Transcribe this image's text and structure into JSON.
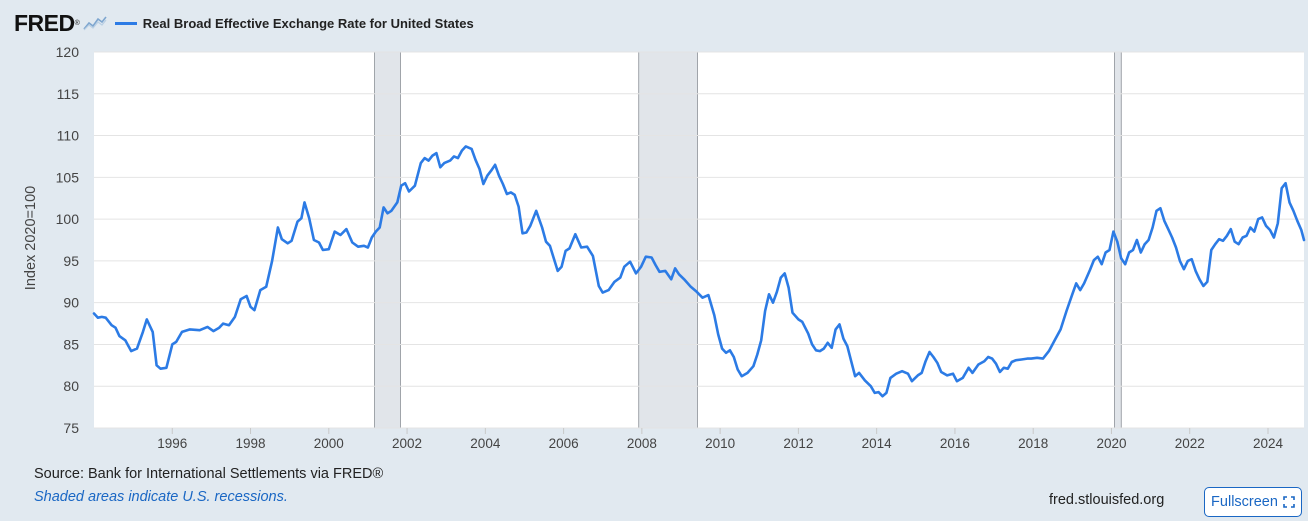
{
  "header": {
    "logo_text": "FRED",
    "logo_reg": "®",
    "legend_label": "Real Broad Effective Exchange Rate for United States",
    "series_color": "#2c7be5"
  },
  "footer": {
    "source": "Source: Bank for International Settlements via FRED®",
    "note": "Shaded areas indicate U.S. recessions.",
    "site": "fred.stlouisfed.org",
    "fullscreen_label": "Fullscreen"
  },
  "chart_data": {
    "type": "line",
    "title": "",
    "ylabel": "Index 2020=100",
    "xlabel": "",
    "xlim": [
      1994.0,
      2024.92
    ],
    "ylim": [
      75,
      120
    ],
    "yticks": [
      75,
      80,
      85,
      90,
      95,
      100,
      105,
      110,
      115,
      120
    ],
    "xticks": [
      1996,
      1998,
      2000,
      2002,
      2004,
      2006,
      2008,
      2010,
      2012,
      2014,
      2016,
      2018,
      2020,
      2022,
      2024
    ],
    "grid": "horizontal",
    "recessions": [
      [
        2001.17,
        2001.83
      ],
      [
        2007.92,
        2009.42
      ],
      [
        2020.08,
        2020.25
      ]
    ],
    "series": [
      {
        "name": "Real Broad Effective Exchange Rate for United States",
        "color": "#2c7be5",
        "points": [
          [
            1994.0,
            88.7
          ],
          [
            1994.1,
            88.2
          ],
          [
            1994.2,
            88.3
          ],
          [
            1994.3,
            88.2
          ],
          [
            1994.45,
            87.3
          ],
          [
            1994.55,
            87.0
          ],
          [
            1994.65,
            86.0
          ],
          [
            1994.8,
            85.5
          ],
          [
            1994.95,
            84.2
          ],
          [
            1995.1,
            84.5
          ],
          [
            1995.25,
            86.5
          ],
          [
            1995.35,
            88.0
          ],
          [
            1995.5,
            86.5
          ],
          [
            1995.6,
            82.5
          ],
          [
            1995.7,
            82.1
          ],
          [
            1995.85,
            82.2
          ],
          [
            1996.0,
            85.0
          ],
          [
            1996.1,
            85.3
          ],
          [
            1996.25,
            86.5
          ],
          [
            1996.45,
            86.8
          ],
          [
            1996.7,
            86.7
          ],
          [
            1996.9,
            87.1
          ],
          [
            1997.05,
            86.6
          ],
          [
            1997.2,
            87.0
          ],
          [
            1997.3,
            87.5
          ],
          [
            1997.45,
            87.3
          ],
          [
            1997.6,
            88.3
          ],
          [
            1997.75,
            90.4
          ],
          [
            1997.9,
            90.8
          ],
          [
            1998.0,
            89.5
          ],
          [
            1998.1,
            89.1
          ],
          [
            1998.25,
            91.5
          ],
          [
            1998.4,
            91.9
          ],
          [
            1998.55,
            95.0
          ],
          [
            1998.7,
            99.0
          ],
          [
            1998.8,
            97.6
          ],
          [
            1998.95,
            97.1
          ],
          [
            1999.05,
            97.4
          ],
          [
            1999.2,
            99.7
          ],
          [
            1999.3,
            100.1
          ],
          [
            1999.38,
            102.0
          ],
          [
            1999.5,
            100.1
          ],
          [
            1999.62,
            97.5
          ],
          [
            1999.75,
            97.2
          ],
          [
            1999.85,
            96.3
          ],
          [
            2000.0,
            96.4
          ],
          [
            2000.15,
            98.5
          ],
          [
            2000.3,
            98.1
          ],
          [
            2000.45,
            98.8
          ],
          [
            2000.6,
            97.2
          ],
          [
            2000.75,
            96.7
          ],
          [
            2000.9,
            96.8
          ],
          [
            2001.0,
            96.6
          ],
          [
            2001.1,
            97.8
          ],
          [
            2001.2,
            98.5
          ],
          [
            2001.3,
            99.0
          ],
          [
            2001.4,
            101.4
          ],
          [
            2001.5,
            100.7
          ],
          [
            2001.6,
            101.0
          ],
          [
            2001.75,
            102.0
          ],
          [
            2001.85,
            104.0
          ],
          [
            2001.95,
            104.3
          ],
          [
            2002.05,
            103.3
          ],
          [
            2002.2,
            104.0
          ],
          [
            2002.35,
            106.7
          ],
          [
            2002.45,
            107.3
          ],
          [
            2002.55,
            107.0
          ],
          [
            2002.65,
            107.6
          ],
          [
            2002.75,
            107.9
          ],
          [
            2002.85,
            106.2
          ],
          [
            2002.95,
            106.7
          ],
          [
            2003.1,
            107.0
          ],
          [
            2003.2,
            107.5
          ],
          [
            2003.3,
            107.3
          ],
          [
            2003.4,
            108.2
          ],
          [
            2003.5,
            108.7
          ],
          [
            2003.65,
            108.4
          ],
          [
            2003.75,
            107.1
          ],
          [
            2003.85,
            106.0
          ],
          [
            2003.95,
            104.2
          ],
          [
            2004.05,
            105.2
          ],
          [
            2004.15,
            105.8
          ],
          [
            2004.25,
            106.5
          ],
          [
            2004.35,
            105.2
          ],
          [
            2004.45,
            104.2
          ],
          [
            2004.55,
            103.0
          ],
          [
            2004.65,
            103.2
          ],
          [
            2004.75,
            102.9
          ],
          [
            2004.85,
            101.5
          ],
          [
            2004.95,
            98.3
          ],
          [
            2005.05,
            98.4
          ],
          [
            2005.15,
            99.2
          ],
          [
            2005.3,
            101.0
          ],
          [
            2005.45,
            99.0
          ],
          [
            2005.55,
            97.3
          ],
          [
            2005.65,
            96.8
          ],
          [
            2005.75,
            95.3
          ],
          [
            2005.85,
            93.8
          ],
          [
            2005.95,
            94.3
          ],
          [
            2006.05,
            96.2
          ],
          [
            2006.15,
            96.5
          ],
          [
            2006.3,
            98.2
          ],
          [
            2006.45,
            96.6
          ],
          [
            2006.6,
            96.7
          ],
          [
            2006.75,
            95.6
          ],
          [
            2006.9,
            92.0
          ],
          [
            2007.0,
            91.2
          ],
          [
            2007.15,
            91.5
          ],
          [
            2007.3,
            92.5
          ],
          [
            2007.45,
            93.0
          ],
          [
            2007.55,
            94.3
          ],
          [
            2007.7,
            94.9
          ],
          [
            2007.85,
            93.5
          ],
          [
            2007.98,
            94.3
          ],
          [
            2008.1,
            95.5
          ],
          [
            2008.25,
            95.4
          ],
          [
            2008.35,
            94.5
          ],
          [
            2008.45,
            93.7
          ],
          [
            2008.6,
            93.8
          ],
          [
            2008.75,
            92.8
          ],
          [
            2008.85,
            94.1
          ],
          [
            2008.95,
            93.4
          ],
          [
            2009.1,
            92.7
          ],
          [
            2009.25,
            91.9
          ],
          [
            2009.4,
            91.3
          ],
          [
            2009.55,
            90.6
          ],
          [
            2009.7,
            90.9
          ],
          [
            2009.85,
            88.5
          ],
          [
            2009.95,
            86.2
          ],
          [
            2010.05,
            84.5
          ],
          [
            2010.15,
            84.0
          ],
          [
            2010.25,
            84.3
          ],
          [
            2010.35,
            83.5
          ],
          [
            2010.45,
            82.0
          ],
          [
            2010.55,
            81.2
          ],
          [
            2010.7,
            81.6
          ],
          [
            2010.85,
            82.4
          ],
          [
            2010.95,
            83.8
          ],
          [
            2011.05,
            85.5
          ],
          [
            2011.15,
            89.0
          ],
          [
            2011.25,
            91.0
          ],
          [
            2011.35,
            90.0
          ],
          [
            2011.45,
            91.3
          ],
          [
            2011.55,
            93.0
          ],
          [
            2011.65,
            93.5
          ],
          [
            2011.75,
            91.8
          ],
          [
            2011.85,
            88.8
          ],
          [
            2012.0,
            88.0
          ],
          [
            2012.1,
            87.7
          ],
          [
            2012.25,
            86.3
          ],
          [
            2012.35,
            85.0
          ],
          [
            2012.45,
            84.3
          ],
          [
            2012.55,
            84.2
          ],
          [
            2012.65,
            84.5
          ],
          [
            2012.75,
            85.2
          ],
          [
            2012.85,
            84.6
          ],
          [
            2012.95,
            86.8
          ],
          [
            2013.05,
            87.4
          ],
          [
            2013.15,
            85.7
          ],
          [
            2013.25,
            84.8
          ],
          [
            2013.35,
            83.0
          ],
          [
            2013.45,
            81.2
          ],
          [
            2013.55,
            81.6
          ],
          [
            2013.7,
            80.7
          ],
          [
            2013.85,
            80.0
          ],
          [
            2013.95,
            79.2
          ],
          [
            2014.05,
            79.3
          ],
          [
            2014.15,
            78.8
          ],
          [
            2014.25,
            79.2
          ],
          [
            2014.35,
            81.0
          ],
          [
            2014.5,
            81.5
          ],
          [
            2014.65,
            81.8
          ],
          [
            2014.8,
            81.5
          ],
          [
            2014.9,
            80.6
          ],
          [
            2015.05,
            81.3
          ],
          [
            2015.15,
            81.6
          ],
          [
            2015.25,
            83.0
          ],
          [
            2015.35,
            84.1
          ],
          [
            2015.45,
            83.5
          ],
          [
            2015.55,
            82.8
          ],
          [
            2015.65,
            81.7
          ],
          [
            2015.8,
            81.3
          ],
          [
            2015.95,
            81.5
          ],
          [
            2016.05,
            80.6
          ],
          [
            2016.2,
            81.0
          ],
          [
            2016.35,
            82.2
          ],
          [
            2016.45,
            81.6
          ],
          [
            2016.6,
            82.6
          ],
          [
            2016.75,
            83.0
          ],
          [
            2016.85,
            83.5
          ],
          [
            2016.95,
            83.3
          ],
          [
            2017.05,
            82.7
          ],
          [
            2017.15,
            81.7
          ],
          [
            2017.25,
            82.2
          ],
          [
            2017.35,
            82.1
          ],
          [
            2017.45,
            82.9
          ],
          [
            2017.55,
            83.1
          ],
          [
            2017.7,
            83.2
          ],
          [
            2017.85,
            83.3
          ],
          [
            2017.95,
            83.3
          ],
          [
            2018.1,
            83.4
          ],
          [
            2018.25,
            83.3
          ],
          [
            2018.4,
            84.2
          ],
          [
            2018.55,
            85.5
          ],
          [
            2018.7,
            86.8
          ],
          [
            2018.85,
            89.0
          ],
          [
            2019.0,
            91.0
          ],
          [
            2019.1,
            92.3
          ],
          [
            2019.2,
            91.5
          ],
          [
            2019.3,
            92.3
          ],
          [
            2019.45,
            93.9
          ],
          [
            2019.55,
            95.1
          ],
          [
            2019.65,
            95.5
          ],
          [
            2019.75,
            94.6
          ],
          [
            2019.85,
            96.0
          ],
          [
            2019.95,
            96.3
          ],
          [
            2020.05,
            98.5
          ],
          [
            2020.15,
            97.3
          ],
          [
            2020.25,
            95.3
          ],
          [
            2020.35,
            94.6
          ],
          [
            2020.45,
            96.0
          ],
          [
            2020.55,
            96.3
          ],
          [
            2020.65,
            97.5
          ],
          [
            2020.75,
            96.0
          ],
          [
            2020.85,
            97.0
          ],
          [
            2020.95,
            97.5
          ],
          [
            2021.05,
            99.0
          ],
          [
            2021.15,
            101.0
          ],
          [
            2021.25,
            101.3
          ],
          [
            2021.35,
            99.8
          ],
          [
            2021.45,
            98.8
          ],
          [
            2021.55,
            97.8
          ],
          [
            2021.65,
            96.6
          ],
          [
            2021.75,
            95.0
          ],
          [
            2021.85,
            94.0
          ],
          [
            2021.95,
            95.0
          ],
          [
            2022.05,
            95.2
          ],
          [
            2022.15,
            93.8
          ],
          [
            2022.25,
            92.8
          ],
          [
            2022.35,
            92.0
          ],
          [
            2022.45,
            92.5
          ],
          [
            2022.55,
            96.3
          ],
          [
            2022.65,
            97.0
          ],
          [
            2022.75,
            97.6
          ],
          [
            2022.85,
            97.4
          ],
          [
            2022.95,
            98.0
          ],
          [
            2023.05,
            98.8
          ],
          [
            2023.15,
            97.3
          ],
          [
            2023.25,
            97.0
          ],
          [
            2023.35,
            97.8
          ],
          [
            2023.45,
            98.0
          ],
          [
            2023.55,
            99.0
          ],
          [
            2023.65,
            98.5
          ],
          [
            2023.75,
            100.0
          ],
          [
            2023.85,
            100.2
          ],
          [
            2023.95,
            99.2
          ],
          [
            2024.05,
            98.7
          ],
          [
            2024.15,
            97.8
          ],
          [
            2024.25,
            99.5
          ],
          [
            2024.35,
            103.7
          ],
          [
            2024.45,
            104.3
          ],
          [
            2024.55,
            102.0
          ],
          [
            2024.65,
            101.0
          ],
          [
            2024.75,
            99.8
          ],
          [
            2024.85,
            98.7
          ],
          [
            2024.92,
            97.5
          ]
        ]
      }
    ]
  }
}
